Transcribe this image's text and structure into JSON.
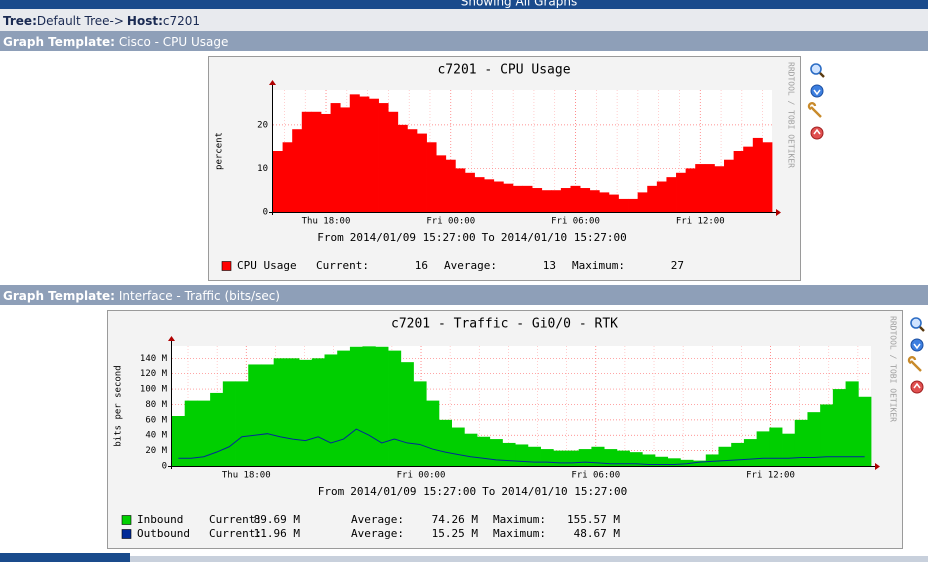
{
  "top_bar": "Showing All Graphs",
  "breadcrumb": {
    "tree_label": "Tree:",
    "tree": "Default Tree->",
    "host_label": "Host:",
    "host": "c7201"
  },
  "graphs": [
    {
      "template_label": "Graph Template:",
      "template": "Cisco - CPU Usage",
      "chart_data": {
        "type": "area",
        "title": "c7201 - CPU Usage",
        "y_label": "percent",
        "credit": "RRDTOOL / TOBI OETIKER",
        "from_label": "From",
        "from": "2014/01/09 15:27:00",
        "to_label": "To",
        "to": "2014/01/10 15:27:00",
        "xticks": [
          "Thu 18:00",
          "Fri 00:00",
          "Fri 06:00",
          "Fri 12:00"
        ],
        "ylim": [
          0,
          28
        ],
        "yticks": [
          0,
          10,
          20
        ],
        "grid": true,
        "stat_labels": [
          "Current:",
          "Average:",
          "Maximum:"
        ],
        "series": [
          {
            "name": "CPU Usage",
            "color": "#ff0000",
            "style": "area",
            "values": [
              14,
              16,
              19,
              23,
              23,
              22.5,
              25,
              24,
              27,
              26.5,
              26,
              25,
              23,
              20,
              19,
              18,
              16,
              13,
              12,
              10,
              9,
              8,
              7.5,
              7,
              6.5,
              6,
              6,
              5.5,
              5,
              5,
              5.5,
              6,
              5.5,
              5,
              4.5,
              4,
              3,
              3,
              4.5,
              6,
              7,
              8,
              9,
              10,
              11,
              11,
              10.5,
              12,
              14,
              15,
              17,
              16
            ],
            "stats": [
              16,
              13,
              27
            ]
          }
        ]
      }
    },
    {
      "template_label": "Graph Template:",
      "template": "Interface - Traffic (bits/sec)",
      "chart_data": {
        "type": "area",
        "title": "c7201 - Traffic - Gi0/0 - RTK",
        "y_label": "bits per second",
        "credit": "RRDTOOL / TOBI OETIKER",
        "from_label": "From",
        "from": "2014/01/09 15:27:00",
        "to_label": "To",
        "to": "2014/01/10 15:27:00",
        "xticks": [
          "Thu 18:00",
          "Fri 00:00",
          "Fri 06:00",
          "Fri 12:00"
        ],
        "ylim": [
          0,
          156
        ],
        "yticks": [
          0,
          {
            "value": 20,
            "label": "20 M"
          },
          {
            "value": 40,
            "label": "40 M"
          },
          {
            "value": 60,
            "label": "60 M"
          },
          {
            "value": 80,
            "label": "80 M"
          },
          {
            "value": 100,
            "label": "100 M"
          },
          {
            "value": 120,
            "label": "120 M"
          },
          {
            "value": 140,
            "label": "140 M"
          }
        ],
        "grid": true,
        "stat_labels": [
          "Current:",
          "Average:",
          "Maximum:"
        ],
        "series": [
          {
            "name": "Inbound",
            "color": "#00cf00",
            "style": "area",
            "values": [
              65,
              85,
              85,
              95,
              110,
              110,
              132,
              132,
              140,
              140,
              138,
              140,
              145,
              150,
              155,
              155.57,
              155,
              150,
              135,
              110,
              85,
              60,
              50,
              42,
              38,
              35,
              30,
              28,
              25,
              22,
              20,
              20,
              22,
              25,
              22,
              20,
              18,
              15,
              12,
              10,
              8,
              7,
              15,
              25,
              30,
              35,
              45,
              50,
              42,
              60,
              70,
              80,
              100,
              110,
              90
            ],
            "stats": [
              "89.69 M",
              "74.26 M",
              "155.57 M"
            ]
          },
          {
            "name": "Outbound",
            "color": "#002a97",
            "style": "line",
            "values": [
              10,
              10,
              12,
              18,
              25,
              38,
              40,
              42,
              38,
              35,
              33,
              38,
              30,
              35,
              48,
              40,
              30,
              35,
              30,
              28,
              22,
              18,
              15,
              12,
              10,
              8,
              7,
              6,
              5,
              5,
              4,
              4,
              5,
              4,
              3,
              3,
              3,
              2,
              2,
              2,
              3,
              5,
              6,
              7,
              8,
              9,
              10,
              10,
              10,
              11,
              11,
              12,
              12,
              12,
              12
            ],
            "stats": [
              "11.96 M",
              "15.25 M",
              "48.67 M"
            ]
          }
        ]
      }
    }
  ]
}
